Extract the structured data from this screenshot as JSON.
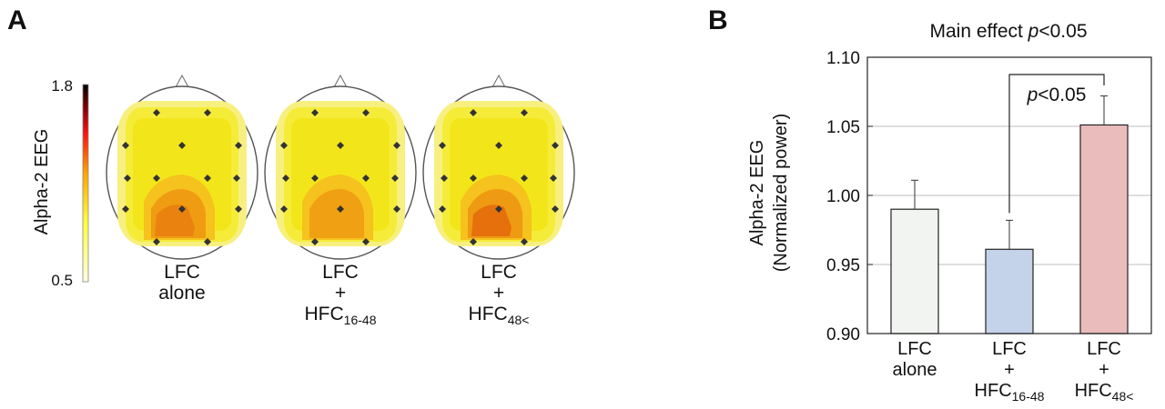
{
  "panel_a": {
    "letter": "A",
    "colorbar": {
      "label": "Alpha-2 EEG",
      "max_label": "1.8",
      "min_label": "0.5"
    },
    "maps": [
      {
        "id": "lfc-alone",
        "label_lines": [
          "LFC",
          "alone"
        ],
        "sub": "",
        "intensity": 0.35
      },
      {
        "id": "lfc-hfc16",
        "label_lines": [
          "LFC",
          "+",
          "HFC"
        ],
        "sub": "16-48",
        "intensity": 0.25
      },
      {
        "id": "lfc-hfc48",
        "label_lines": [
          "LFC",
          "+",
          "HFC"
        ],
        "sub": "48<",
        "intensity": 0.6
      }
    ]
  },
  "panel_b": {
    "letter": "B"
  },
  "chart_data": {
    "type": "bar",
    "title_prefix": "Main effect ",
    "title_p": "p",
    "title_suffix": "<0.05",
    "ylabel_line1": "Alpha-2 EEG",
    "ylabel_line2": "(Normalized power)",
    "ylim": [
      0.9,
      1.1
    ],
    "yticks": [
      "0.90",
      "0.95",
      "1.00",
      "1.05",
      "1.10"
    ],
    "grid": true,
    "categories": [
      {
        "lines": [
          "LFC",
          "alone"
        ],
        "sub": ""
      },
      {
        "lines": [
          "LFC",
          "+",
          "HFC"
        ],
        "sub": "16-48"
      },
      {
        "lines": [
          "LFC",
          "+",
          "HFC"
        ],
        "sub": "48<"
      }
    ],
    "values": [
      0.99,
      0.961,
      1.051
    ],
    "errors": [
      0.021,
      0.021,
      0.021
    ],
    "colors": [
      "#f2f4f2",
      "#c5d3ea",
      "#ebbcbc"
    ],
    "annotation": {
      "p": "p",
      "text": "<0.05",
      "from": 1,
      "to": 2
    }
  }
}
